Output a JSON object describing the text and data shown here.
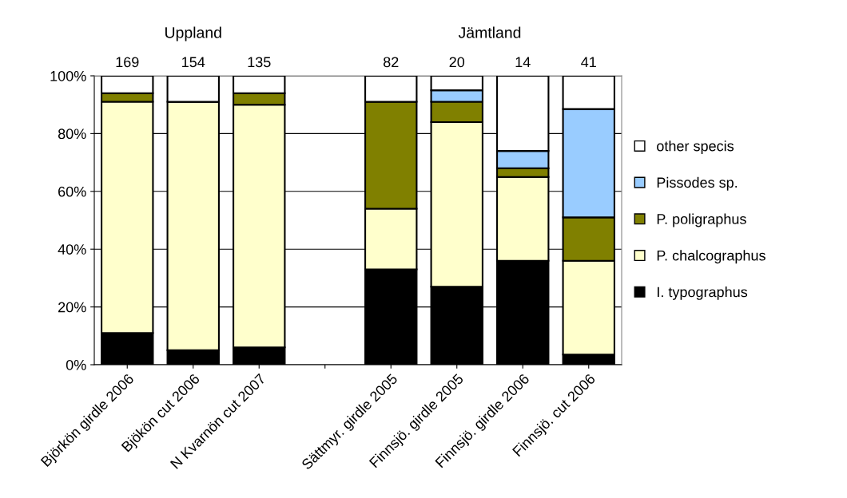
{
  "chart_data": {
    "type": "bar",
    "stacked": true,
    "categories": [
      "Björkön girdle 2006",
      "Bjökön cut 2006",
      "N Kvarnön cut 2007",
      null,
      "Sättmyr. girdle 2005",
      "Finnsjö. girdle 2005",
      "Finnsjö. girdle 2006",
      "Finnsjö. cut 2006"
    ],
    "series": [
      {
        "name": "I. typographus",
        "color": "#000000",
        "values": [
          11,
          5,
          6,
          null,
          33,
          27,
          36,
          3.5
        ]
      },
      {
        "name": "P. chalcographus",
        "color": "#ffffcc",
        "values": [
          80,
          86,
          84,
          null,
          21,
          57,
          29,
          32.5
        ]
      },
      {
        "name": "P. poligraphus",
        "color": "#808000",
        "values": [
          3,
          0,
          4,
          null,
          37,
          7,
          3,
          15
        ]
      },
      {
        "name": "Pissodes sp.",
        "color": "#99ccff",
        "values": [
          0,
          0,
          0,
          null,
          0,
          4,
          6,
          37.5
        ]
      },
      {
        "name": "other specis",
        "color": "#ffffff",
        "values": [
          6,
          9,
          6,
          null,
          9,
          5,
          26,
          11.5
        ]
      }
    ],
    "ylim": [
      0,
      100
    ],
    "yticks": [
      {
        "value": 0,
        "label": "0%"
      },
      {
        "value": 20,
        "label": "20%"
      },
      {
        "value": 40,
        "label": "40%"
      },
      {
        "value": 60,
        "label": "60%"
      },
      {
        "value": 80,
        "label": "80%"
      },
      {
        "value": 100,
        "label": "100%"
      }
    ],
    "grid": "y",
    "legend": "right",
    "annotations": [
      "169",
      "154",
      "135",
      "82",
      "20",
      "14",
      "41",
      "Uppland",
      "Jämtland"
    ]
  }
}
